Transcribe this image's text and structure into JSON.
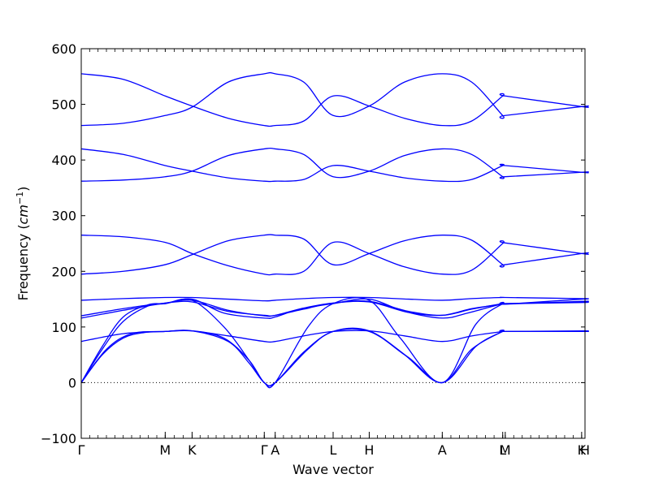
{
  "chart_data": {
    "type": "line",
    "title": "",
    "xlabel": "Wave vector",
    "ylabel": "Frequency",
    "ylabel_unit": "cm",
    "ylabel_unit_exponent": "−1",
    "ylim": [
      -100,
      600
    ],
    "yticks": [
      -100,
      0,
      100,
      200,
      300,
      400,
      500,
      600
    ],
    "grid": false,
    "legend": "none",
    "zero_line": 0,
    "line_color": "#0000ff",
    "x_segment_ends": [
      1.0,
      1.32,
      2.18,
      2.31,
      3.0,
      3.43,
      4.3,
      5.02,
      5.05,
      5.96,
      6.0
    ],
    "high_symmetry_points": [
      {
        "label": "Γ",
        "x": 0.0
      },
      {
        "label": "M",
        "x": 1.0
      },
      {
        "label": "K",
        "x": 1.32
      },
      {
        "label": "Γ",
        "x": 2.18
      },
      {
        "label": "A",
        "x": 2.31
      },
      {
        "label": "L",
        "x": 3.0
      },
      {
        "label": "H",
        "x": 3.43
      },
      {
        "label": "A",
        "x": 4.3
      },
      {
        "label": "L",
        "x": 5.02
      },
      {
        "label": "M",
        "x": 5.05
      },
      {
        "label": "K",
        "x": 5.96
      },
      {
        "label": "H",
        "x": 6.0
      }
    ],
    "series": [
      {
        "values": [
          [
            0,
            0
          ],
          [
            0.25,
            50
          ],
          [
            0.5,
            80
          ],
          [
            0.75,
            90
          ],
          [
            1.0,
            92
          ],
          [
            1.32,
            93
          ],
          [
            1.75,
            74
          ],
          [
            2.0,
            35
          ],
          [
            2.18,
            0
          ],
          [
            2.31,
            0
          ],
          [
            2.65,
            55
          ],
          [
            3.0,
            92
          ],
          [
            3.43,
            93
          ],
          [
            3.9,
            45
          ],
          [
            4.3,
            0
          ],
          [
            4.65,
            60
          ],
          [
            5.02,
            92
          ],
          [
            5.05,
            92
          ],
          [
            5.96,
            93
          ],
          [
            6.0,
            93
          ]
        ]
      },
      {
        "values": [
          [
            0,
            0
          ],
          [
            0.3,
            60
          ],
          [
            0.6,
            88
          ],
          [
            1.0,
            92
          ],
          [
            1.32,
            93
          ],
          [
            1.7,
            80
          ],
          [
            2.0,
            40
          ],
          [
            2.18,
            0
          ],
          [
            2.31,
            0
          ],
          [
            2.7,
            60
          ],
          [
            3.0,
            92
          ],
          [
            3.43,
            92
          ],
          [
            3.85,
            50
          ],
          [
            4.3,
            0
          ],
          [
            4.7,
            65
          ],
          [
            5.02,
            92
          ],
          [
            5.05,
            92
          ],
          [
            5.96,
            92
          ],
          [
            6.0,
            92
          ]
        ]
      },
      {
        "values": [
          [
            0,
            0
          ],
          [
            0.25,
            60
          ],
          [
            0.5,
            110
          ],
          [
            0.8,
            138
          ],
          [
            1.0,
            142
          ],
          [
            1.32,
            150
          ],
          [
            1.7,
            125
          ],
          [
            2.18,
            116
          ],
          [
            2.31,
            118
          ],
          [
            2.6,
            132
          ],
          [
            3.0,
            142
          ],
          [
            3.43,
            150
          ],
          [
            3.85,
            128
          ],
          [
            4.3,
            116
          ],
          [
            4.6,
            125
          ],
          [
            5.02,
            142
          ],
          [
            5.05,
            141
          ],
          [
            5.96,
            150
          ],
          [
            6.0,
            150
          ]
        ]
      },
      {
        "values": [
          [
            0,
            0
          ],
          [
            0.25,
            65
          ],
          [
            0.5,
            118
          ],
          [
            0.8,
            140
          ],
          [
            1.0,
            142
          ],
          [
            1.32,
            148
          ],
          [
            1.7,
            100
          ],
          [
            2.0,
            40
          ],
          [
            2.18,
            0
          ],
          [
            2.31,
            0
          ],
          [
            2.7,
            100
          ],
          [
            3.0,
            142
          ],
          [
            3.43,
            148
          ],
          [
            3.8,
            80
          ],
          [
            4.3,
            0
          ],
          [
            4.7,
            105
          ],
          [
            5.02,
            142
          ],
          [
            5.05,
            141
          ],
          [
            5.96,
            146
          ],
          [
            6.0,
            146
          ]
        ]
      },
      {
        "values": [
          [
            0,
            74
          ],
          [
            0.5,
            88
          ],
          [
            1.0,
            92
          ],
          [
            1.32,
            93
          ],
          [
            1.75,
            84
          ],
          [
            2.18,
            74
          ],
          [
            2.31,
            74
          ],
          [
            2.65,
            84
          ],
          [
            3.0,
            92
          ],
          [
            3.43,
            93
          ],
          [
            3.85,
            84
          ],
          [
            4.3,
            74
          ],
          [
            4.65,
            84
          ],
          [
            5.02,
            92
          ],
          [
            5.05,
            92
          ],
          [
            5.96,
            92
          ],
          [
            6.0,
            92
          ]
        ]
      },
      {
        "values": [
          [
            0,
            116
          ],
          [
            0.5,
            130
          ],
          [
            1.0,
            143
          ],
          [
            1.32,
            148
          ],
          [
            1.75,
            130
          ],
          [
            2.18,
            120
          ],
          [
            2.31,
            121
          ],
          [
            2.65,
            132
          ],
          [
            3.0,
            143
          ],
          [
            3.43,
            146
          ],
          [
            3.9,
            128
          ],
          [
            4.3,
            121
          ],
          [
            4.65,
            132
          ],
          [
            5.02,
            142
          ],
          [
            5.05,
            142
          ],
          [
            5.96,
            144
          ],
          [
            6.0,
            145
          ]
        ]
      },
      {
        "values": [
          [
            0,
            120
          ],
          [
            0.5,
            133
          ],
          [
            1.0,
            143
          ],
          [
            1.32,
            145
          ],
          [
            1.75,
            128
          ],
          [
            2.18,
            121
          ],
          [
            2.31,
            121
          ],
          [
            2.65,
            134
          ],
          [
            3.0,
            143
          ],
          [
            3.43,
            145
          ],
          [
            3.9,
            126
          ],
          [
            4.3,
            121
          ],
          [
            4.65,
            133
          ],
          [
            5.02,
            141
          ],
          [
            5.05,
            142
          ],
          [
            5.96,
            145
          ],
          [
            6.0,
            145
          ]
        ]
      },
      {
        "values": [
          [
            0,
            148
          ],
          [
            0.5,
            151
          ],
          [
            1.0,
            153
          ],
          [
            1.32,
            153
          ],
          [
            1.75,
            150
          ],
          [
            2.18,
            147
          ],
          [
            2.31,
            148
          ],
          [
            2.65,
            151
          ],
          [
            3.0,
            153
          ],
          [
            3.43,
            153
          ],
          [
            3.9,
            150
          ],
          [
            4.3,
            148
          ],
          [
            4.65,
            151
          ],
          [
            5.02,
            153
          ],
          [
            5.05,
            153
          ],
          [
            5.96,
            151
          ],
          [
            6.0,
            151
          ]
        ]
      },
      {
        "values": [
          [
            0,
            195
          ],
          [
            0.5,
            200
          ],
          [
            1.0,
            212
          ],
          [
            1.32,
            230
          ],
          [
            1.75,
            255
          ],
          [
            2.18,
            265
          ],
          [
            2.31,
            265
          ],
          [
            2.65,
            258
          ],
          [
            3.0,
            212
          ],
          [
            3.43,
            232
          ],
          [
            3.85,
            255
          ],
          [
            4.3,
            265
          ],
          [
            4.65,
            256
          ],
          [
            5.02,
            212
          ],
          [
            5.05,
            212
          ],
          [
            5.96,
            232
          ],
          [
            6.0,
            232
          ]
        ]
      },
      {
        "values": [
          [
            0,
            265
          ],
          [
            0.5,
            262
          ],
          [
            1.0,
            252
          ],
          [
            1.32,
            232
          ],
          [
            1.75,
            210
          ],
          [
            2.18,
            195
          ],
          [
            2.31,
            195
          ],
          [
            2.65,
            200
          ],
          [
            3.0,
            252
          ],
          [
            3.43,
            232
          ],
          [
            3.85,
            208
          ],
          [
            4.3,
            195
          ],
          [
            4.65,
            202
          ],
          [
            5.02,
            250
          ],
          [
            5.05,
            251
          ],
          [
            5.96,
            232
          ],
          [
            6.0,
            232
          ]
        ]
      },
      {
        "values": [
          [
            0,
            362
          ],
          [
            0.5,
            364
          ],
          [
            1.0,
            370
          ],
          [
            1.32,
            380
          ],
          [
            1.75,
            408
          ],
          [
            2.18,
            420
          ],
          [
            2.31,
            420
          ],
          [
            2.65,
            410
          ],
          [
            3.0,
            370
          ],
          [
            3.43,
            380
          ],
          [
            3.85,
            408
          ],
          [
            4.3,
            420
          ],
          [
            4.65,
            410
          ],
          [
            5.02,
            370
          ],
          [
            5.05,
            370
          ],
          [
            5.96,
            378
          ],
          [
            6.0,
            378
          ]
        ]
      },
      {
        "values": [
          [
            0,
            420
          ],
          [
            0.5,
            410
          ],
          [
            1.0,
            390
          ],
          [
            1.32,
            380
          ],
          [
            1.75,
            368
          ],
          [
            2.18,
            362
          ],
          [
            2.31,
            362
          ],
          [
            2.65,
            365
          ],
          [
            3.0,
            390
          ],
          [
            3.43,
            380
          ],
          [
            3.85,
            368
          ],
          [
            4.3,
            362
          ],
          [
            4.65,
            365
          ],
          [
            5.02,
            390
          ],
          [
            5.05,
            390
          ],
          [
            5.96,
            378
          ],
          [
            6.0,
            378
          ]
        ]
      },
      {
        "values": [
          [
            0,
            462
          ],
          [
            0.5,
            466
          ],
          [
            1.0,
            480
          ],
          [
            1.32,
            495
          ],
          [
            1.75,
            540
          ],
          [
            2.18,
            555
          ],
          [
            2.31,
            555
          ],
          [
            2.65,
            540
          ],
          [
            3.0,
            480
          ],
          [
            3.43,
            497
          ],
          [
            3.85,
            540
          ],
          [
            4.3,
            555
          ],
          [
            4.65,
            540
          ],
          [
            5.02,
            480
          ],
          [
            5.05,
            480
          ],
          [
            5.96,
            496
          ],
          [
            6.0,
            496
          ]
        ]
      },
      {
        "values": [
          [
            0,
            555
          ],
          [
            0.5,
            545
          ],
          [
            1.0,
            515
          ],
          [
            1.32,
            497
          ],
          [
            1.75,
            475
          ],
          [
            2.18,
            462
          ],
          [
            2.31,
            462
          ],
          [
            2.65,
            470
          ],
          [
            3.0,
            515
          ],
          [
            3.43,
            497
          ],
          [
            3.85,
            475
          ],
          [
            4.3,
            462
          ],
          [
            4.65,
            470
          ],
          [
            5.02,
            515
          ],
          [
            5.05,
            515
          ],
          [
            5.96,
            496
          ],
          [
            6.0,
            496
          ]
        ]
      }
    ]
  }
}
